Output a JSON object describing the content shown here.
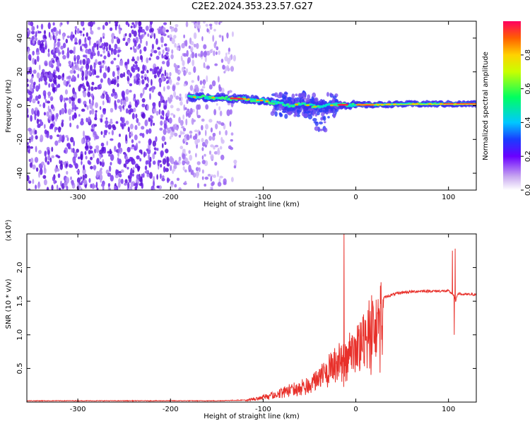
{
  "title": "C2E2.2024.353.23.57.G27",
  "colors": {
    "snr_line": "#e8302a",
    "spectrogram_noise": "#8a45e8",
    "frame": "#000000"
  },
  "chart_data": [
    {
      "type": "heatmap",
      "name": "spectrogram",
      "xlabel": "Height of straight line (km)",
      "ylabel": "Frequency (Hz)",
      "xlim": [
        -355,
        130
      ],
      "ylim": [
        -50,
        50
      ],
      "x_ticks": [
        -300,
        -200,
        -100,
        0,
        100
      ],
      "x_tick_labels": [
        "-300",
        "-200",
        "-100",
        "0",
        "100"
      ],
      "y_ticks": [
        -40,
        -20,
        0,
        20,
        40
      ],
      "y_tick_labels": [
        "-40",
        "-20",
        "0",
        "20",
        "40"
      ],
      "grid": false,
      "colorbar": {
        "label": "Normalized spectral amplitude",
        "range": [
          0,
          1
        ],
        "ticks": [
          0.0,
          0.2,
          0.4,
          0.6,
          0.8
        ],
        "tick_labels": [
          "0.0",
          "0.2",
          "0.4",
          "0.6",
          "0.8"
        ],
        "colormap": "rainbow"
      },
      "ridge": {
        "x": [
          -180,
          -160,
          -140,
          -120,
          -100,
          -90,
          -80,
          -70,
          -60,
          -50,
          -40,
          -30,
          -20,
          -10,
          0,
          20,
          40,
          60,
          80,
          100,
          130
        ],
        "frequency": [
          5,
          5,
          4.5,
          4,
          3,
          2,
          1,
          0,
          1,
          0,
          -1,
          0,
          0.5,
          0.5,
          0.5,
          0.5,
          0.8,
          1,
          1,
          1,
          1
        ]
      },
      "noise_region_x": [
        -355,
        -130
      ]
    },
    {
      "type": "line",
      "name": "snr",
      "xlabel": "Height of straight line (km)",
      "ylabel": "SNR (10 * v/v)",
      "y_multiplier": "(x10⁴)",
      "xlim": [
        -355,
        130
      ],
      "ylim": [
        0,
        2.5
      ],
      "x_ticks": [
        -300,
        -200,
        -100,
        0,
        100
      ],
      "x_tick_labels": [
        "-300",
        "-200",
        "-100",
        "0",
        "100"
      ],
      "y_ticks": [
        0.5,
        1.0,
        1.5,
        2.0
      ],
      "y_tick_labels": [
        "0.5",
        "1.0",
        "1.5",
        "2.0"
      ],
      "grid": false,
      "series": [
        {
          "x": [
            -355,
            -300,
            -200,
            -150,
            -120,
            -110,
            -100,
            -90,
            -80,
            -70,
            -60,
            -50,
            -40,
            -30,
            -25,
            -20,
            -15,
            -10,
            -5,
            0,
            5,
            10,
            20,
            30,
            40,
            50,
            60,
            70,
            80,
            90,
            100,
            105,
            108,
            110,
            115,
            120,
            130
          ],
          "values": [
            0.02,
            0.02,
            0.02,
            0.02,
            0.03,
            0.06,
            0.1,
            0.13,
            0.2,
            0.25,
            0.3,
            0.35,
            0.45,
            0.6,
            0.7,
            0.75,
            0.8,
            0.85,
            0.95,
            1.05,
            1.15,
            1.3,
            1.45,
            1.55,
            1.6,
            1.63,
            1.64,
            1.65,
            1.65,
            1.65,
            1.65,
            1.6,
            1.5,
            1.62,
            1.6,
            1.6,
            1.6
          ]
        }
      ],
      "spikes": [
        {
          "x": -13,
          "value": 2.5
        },
        {
          "x": 104,
          "value": 2.25
        },
        {
          "x": 107,
          "value": 2.28
        },
        {
          "x": 106,
          "value": 1.0
        }
      ]
    }
  ]
}
